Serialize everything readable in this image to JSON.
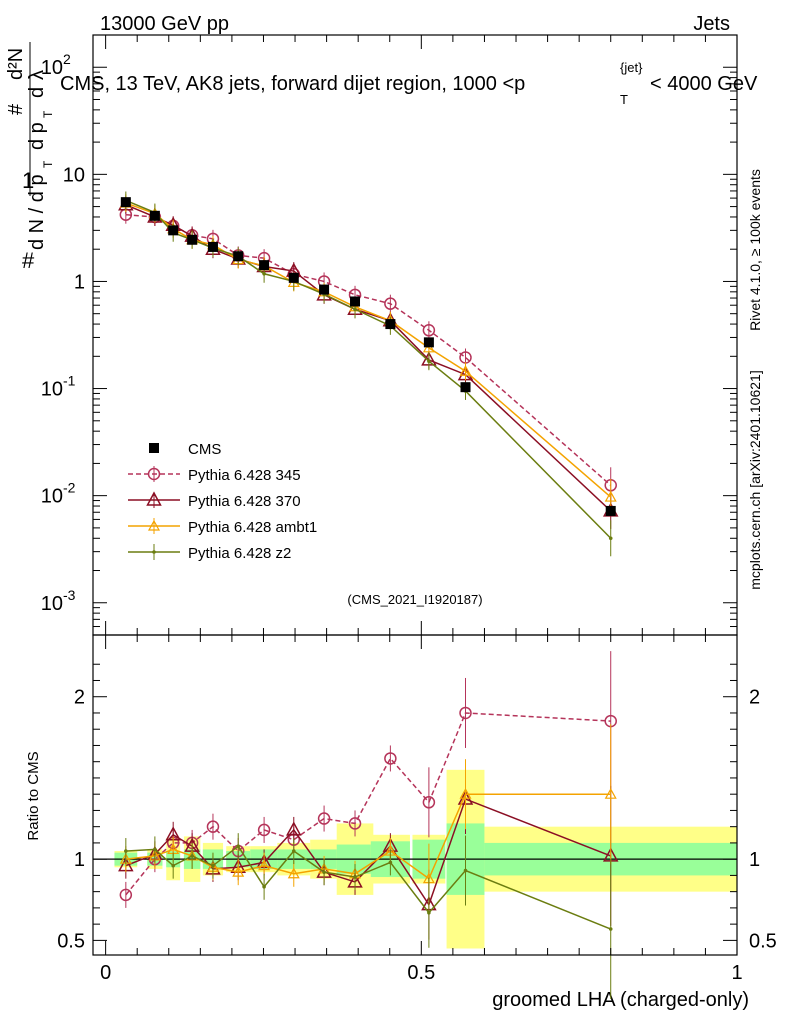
{
  "header": {
    "left": "13000 GeV pp",
    "right": "Jets",
    "title_main": "CMS, 13 TeV, AK8 jets, forward dijet region, 1000 <p",
    "title_sup": "{jet}",
    "title_sub": "T",
    "title_end": "< 4000 GeV"
  },
  "side": {
    "rivet": "Rivet 4.1.0, ≥ 100k events",
    "mcplots": "mcplots.cern.ch [arXiv:2401.10621]"
  },
  "analysis_label": "(CMS_2021_I1920187)",
  "colors": {
    "data": "#000000",
    "p345": "#b5345a",
    "p370": "#8b0f24",
    "ambt1": "#f4a300",
    "z2": "#6b7d10",
    "band_inner": "#99ff99",
    "band_outer": "#ffff88"
  },
  "chart_data": [
    {
      "type": "line",
      "title": "CMS, 13 TeV, AK8 jets, forward dijet region, 1000 < pT jet < 4000 GeV",
      "ylabel": "1/dN/dpT · d²N/dpT dλ",
      "yscale": "log",
      "ylim": [
        0.0005,
        200
      ],
      "xlim": [
        -0.02,
        1.0
      ],
      "ytick_labels": [
        "10^-3",
        "10^-2",
        "10^-1",
        "1",
        "10",
        "10^2"
      ],
      "x": [
        0.032,
        0.078,
        0.107,
        0.137,
        0.17,
        0.21,
        0.251,
        0.298,
        0.346,
        0.395,
        0.451,
        0.512,
        0.57,
        0.8
      ],
      "x_err": [
        0.018,
        0.012,
        0.011,
        0.013,
        0.016,
        0.019,
        0.022,
        0.026,
        0.022,
        0.029,
        0.031,
        0.026,
        0.03,
        0.2
      ],
      "series": [
        {
          "name": "CMS",
          "style": "data",
          "values": [
            5.5,
            4.1,
            3.0,
            2.45,
            2.1,
            1.72,
            1.42,
            1.08,
            0.84,
            0.65,
            0.4,
            0.27,
            0.103,
            0.0072
          ]
        },
        {
          "name": "Pythia 6.428 345",
          "style": "p345",
          "values": [
            4.2,
            4.0,
            3.3,
            2.7,
            2.5,
            1.75,
            1.65,
            1.17,
            1.0,
            0.75,
            0.62,
            0.35,
            0.195,
            0.0125
          ]
        },
        {
          "name": "Pythia 6.428 370",
          "style": "p370",
          "values": [
            5.2,
            4.0,
            3.35,
            2.65,
            2.0,
            1.62,
            1.38,
            1.25,
            0.75,
            0.55,
            0.43,
            0.185,
            0.135,
            0.0072
          ]
        },
        {
          "name": "Pythia 6.428 ambt1",
          "style": "ambt1",
          "values": [
            5.4,
            4.3,
            3.1,
            2.45,
            2.2,
            1.6,
            1.4,
            0.98,
            0.8,
            0.58,
            0.43,
            0.24,
            0.145,
            0.0097
          ]
        },
        {
          "name": "Pythia 6.428 z2",
          "style": "z2",
          "values": [
            5.7,
            4.4,
            2.85,
            2.45,
            2.05,
            1.72,
            1.18,
            1.0,
            0.76,
            0.55,
            0.385,
            0.18,
            0.095,
            0.004
          ]
        }
      ]
    },
    {
      "type": "line",
      "ylabel": "Ratio to CMS",
      "xlabel": "groomed LHA (charged-only)",
      "ylim": [
        0.41,
        2.38
      ],
      "xlim": [
        -0.02,
        1.0
      ],
      "ytick_labels": [
        "0.5",
        "1",
        "2"
      ],
      "xtick_labels": [
        "0",
        "0.5",
        "1"
      ],
      "band_inner": [
        0.04,
        0.04,
        0.05,
        0.06,
        0.06,
        0.05,
        0.06,
        0.06,
        0.06,
        0.09,
        0.11,
        0.12,
        0.22,
        0.1
      ],
      "band_outer": [
        0.05,
        0.06,
        0.13,
        0.14,
        0.1,
        0.08,
        0.08,
        0.1,
        0.12,
        0.22,
        0.15,
        0.15,
        0.55,
        0.2
      ],
      "series": [
        {
          "name": "Pythia 6.428 345",
          "style": "p345",
          "values": [
            0.78,
            1.0,
            1.1,
            1.1,
            1.2,
            1.05,
            1.18,
            1.12,
            1.25,
            1.22,
            1.62,
            1.35,
            1.9,
            1.85
          ]
        },
        {
          "name": "Pythia 6.428 370",
          "style": "p370",
          "values": [
            0.96,
            1.03,
            1.15,
            1.08,
            0.94,
            0.95,
            0.98,
            1.18,
            0.92,
            0.86,
            1.08,
            0.72,
            1.37,
            1.02
          ]
        },
        {
          "name": "Pythia 6.428 ambt1",
          "style": "ambt1",
          "values": [
            1.0,
            1.02,
            1.06,
            1.02,
            0.95,
            0.92,
            0.96,
            0.91,
            0.94,
            0.91,
            1.05,
            0.88,
            1.4,
            1.4
          ]
        },
        {
          "name": "Pythia 6.428 z2",
          "style": "z2",
          "values": [
            1.05,
            1.06,
            0.96,
            1.02,
            0.96,
            1.08,
            0.83,
            1.05,
            0.92,
            0.89,
            0.98,
            0.67,
            0.93,
            0.57
          ]
        }
      ]
    }
  ]
}
